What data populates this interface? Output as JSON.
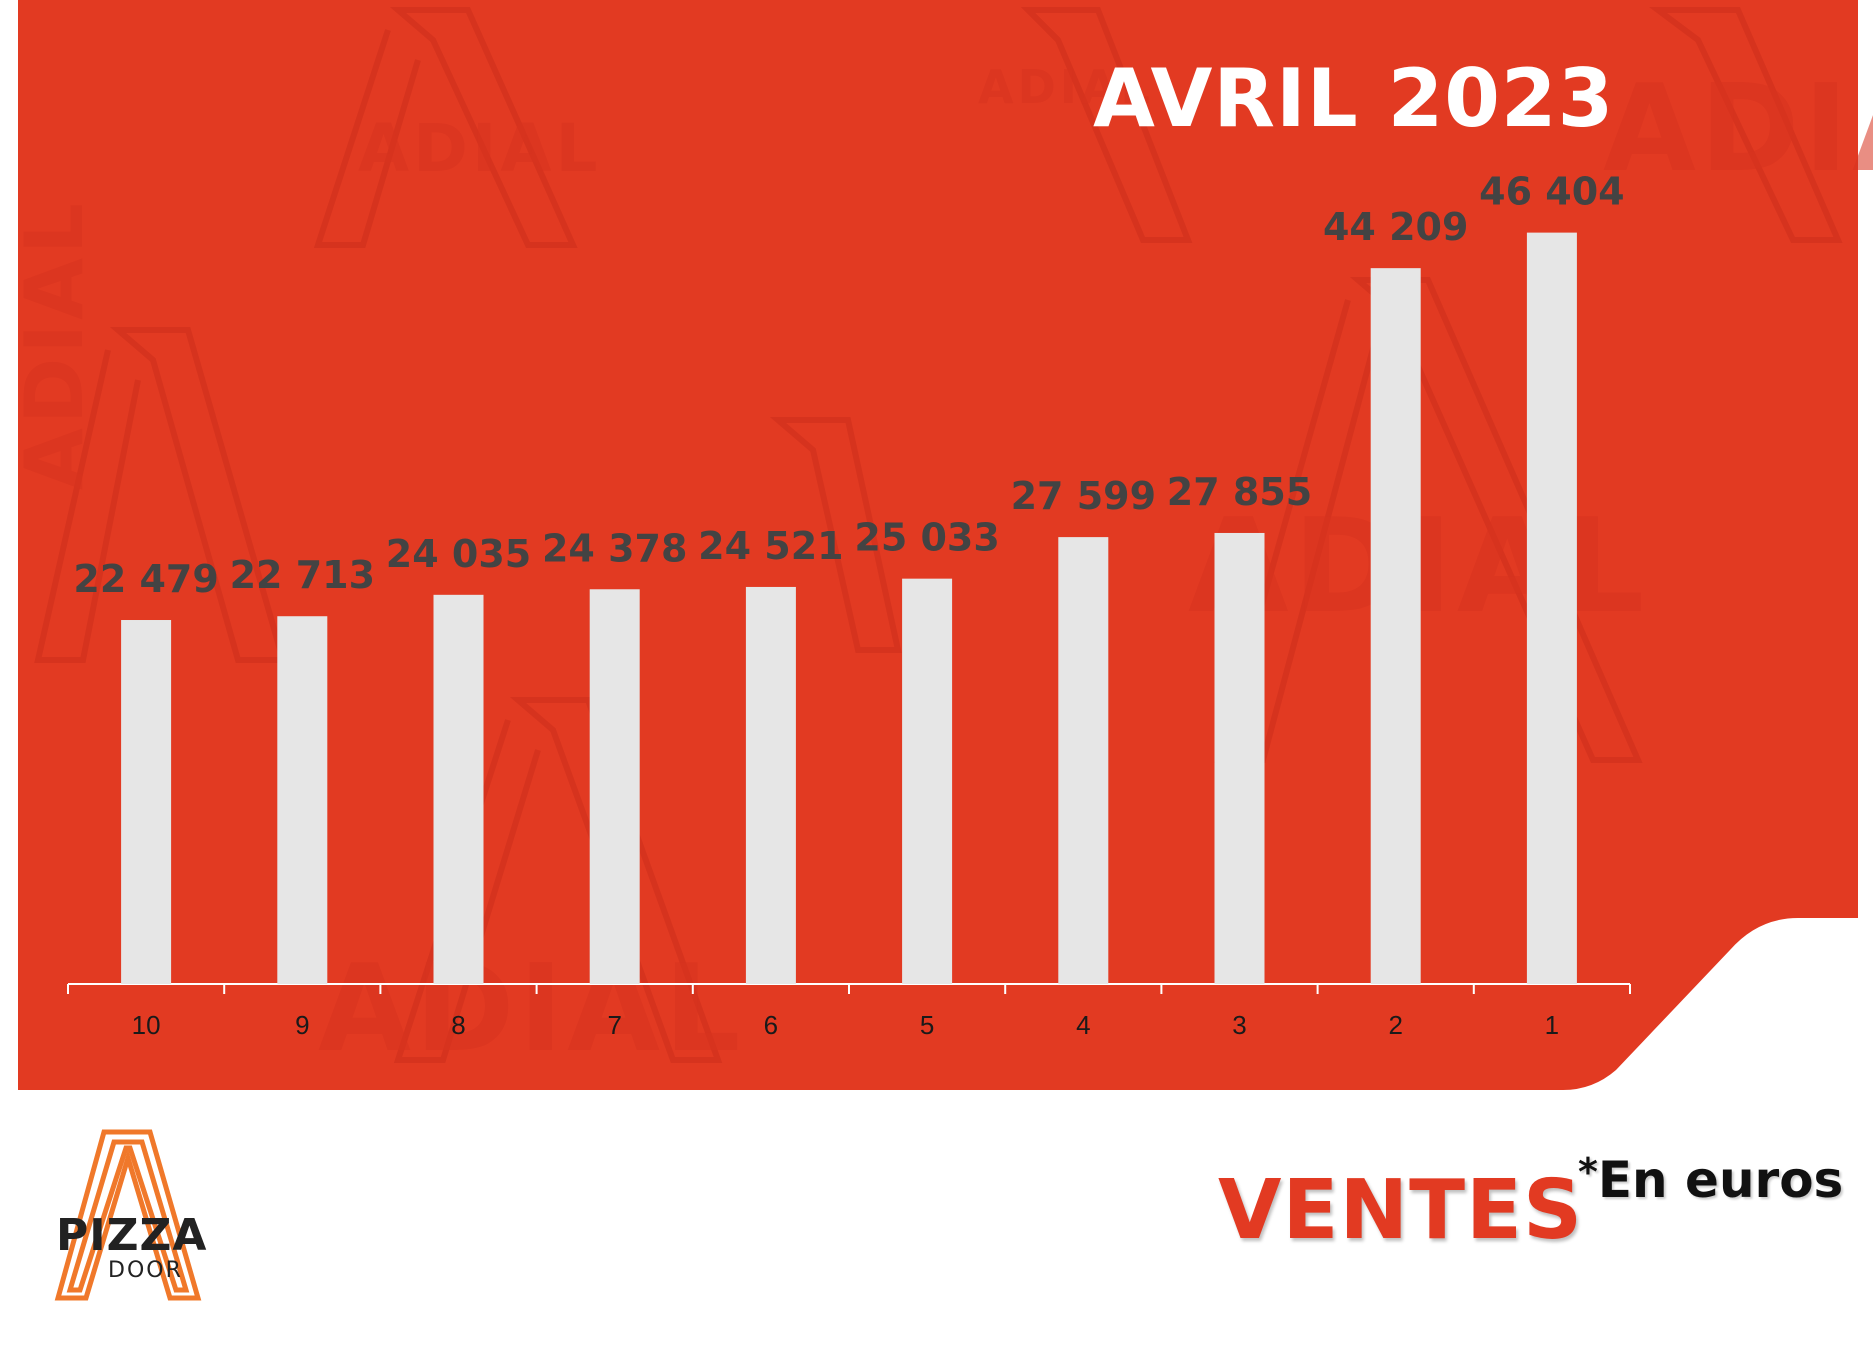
{
  "header": {
    "title": "AVRIL 2023"
  },
  "watermark": {
    "text": "ADIAL"
  },
  "chart_data": {
    "type": "bar",
    "title": "AVRIL 2023",
    "categories": [
      "10",
      "9",
      "8",
      "7",
      "6",
      "5",
      "4",
      "3",
      "2",
      "1"
    ],
    "values": [
      22479,
      22713,
      24035,
      24378,
      24521,
      25033,
      27599,
      27855,
      44209,
      46404
    ],
    "value_labels": [
      "22 479",
      "22 713",
      "24 035",
      "24 378",
      "24 521",
      "25 033",
      "27 599",
      "27 855",
      "44 209",
      "46 404"
    ],
    "xlabel": "",
    "ylabel": "",
    "ylim": [
      0,
      52000
    ],
    "grid": false,
    "colors": {
      "background": "#e23a22",
      "bar": "#e6e6e6",
      "value_label": "#434343",
      "axis": "#ffffff"
    }
  },
  "footer": {
    "section_label": "VENTES",
    "unit_note": "En euros",
    "unit_star": "*",
    "logo": {
      "line1": "PIZZA",
      "line2": "DOOR",
      "accent": "#f0782a"
    }
  }
}
